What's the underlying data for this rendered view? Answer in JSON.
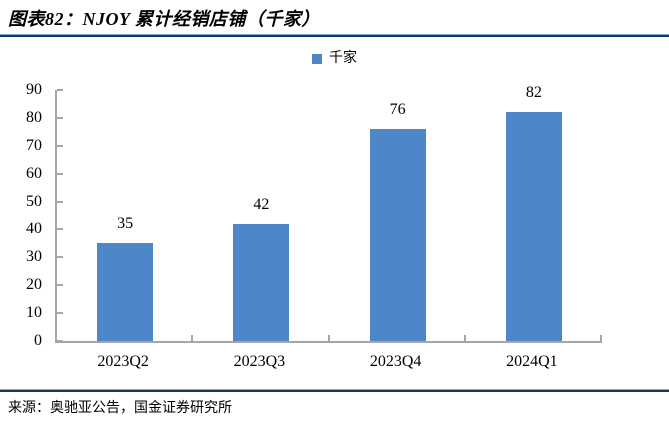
{
  "figure": {
    "title": "图表82：NJOY 累计经销店铺（千家）",
    "source": "来源：奥驰亚公告，国金证券研究所"
  },
  "chart_data": {
    "type": "bar",
    "title": "图表82：NJOY 累计经销店铺（千家）",
    "categories": [
      "2023Q2",
      "2023Q3",
      "2023Q4",
      "2024Q1"
    ],
    "series": [
      {
        "name": "千家",
        "values": [
          35,
          42,
          76,
          82
        ]
      }
    ],
    "values": [
      35,
      42,
      76,
      82
    ],
    "data_labels": [
      "35",
      "42",
      "76",
      "82"
    ],
    "legend": [
      "千家"
    ],
    "legend_position": "top-center",
    "xlabel": "",
    "ylabel": "",
    "ylim": [
      0,
      90
    ],
    "yticks": [
      0,
      10,
      20,
      30,
      40,
      50,
      60,
      70,
      80,
      90
    ],
    "grid": false
  },
  "colors": {
    "bar": "#4E87C9",
    "rule_dark": "#17375E",
    "rule_light": "#7EA6D8",
    "axis": "#A6A6A6",
    "text": "#000000"
  }
}
